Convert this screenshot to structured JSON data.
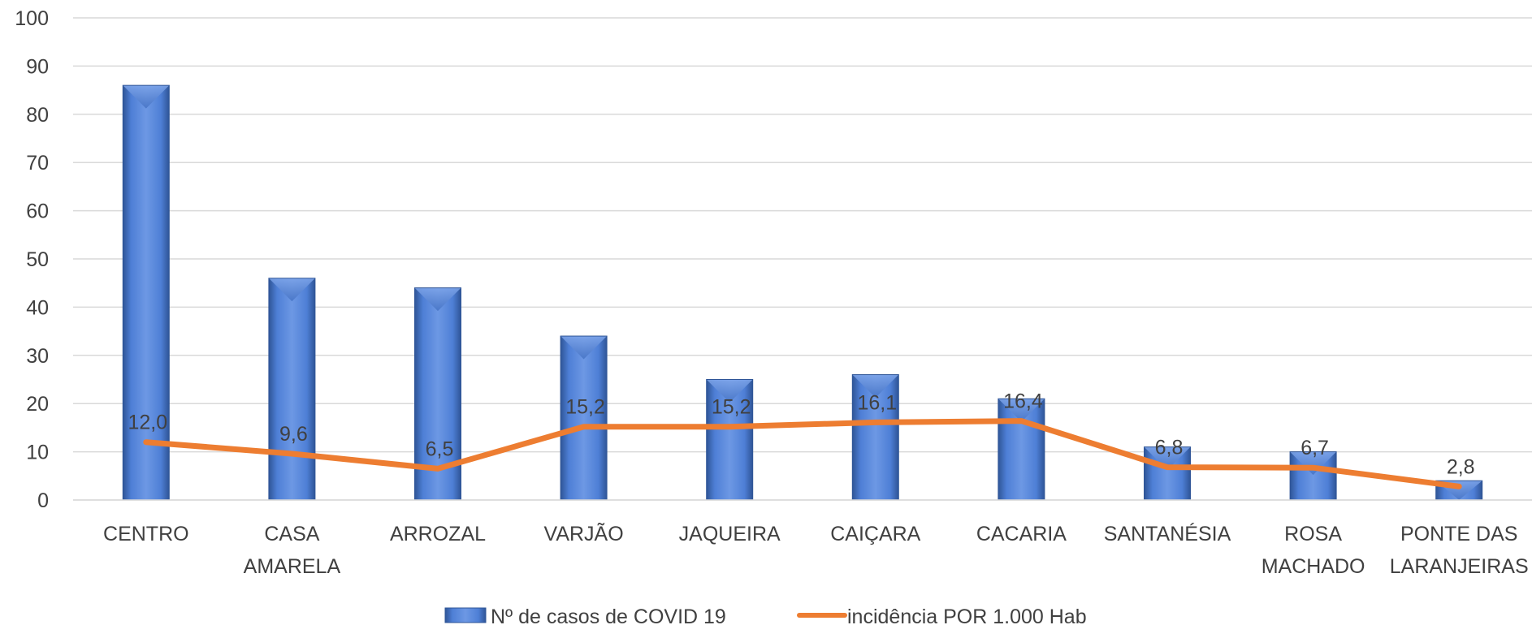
{
  "chart_data": {
    "type": "bar",
    "categories": [
      [
        "CENTRO"
      ],
      [
        "CASA",
        "AMARELA"
      ],
      [
        "ARROZAL"
      ],
      [
        "VARJÃO"
      ],
      [
        "JAQUEIRA"
      ],
      [
        "CAIÇARA"
      ],
      [
        "CACARIA"
      ],
      [
        "SANTANÉSIA"
      ],
      [
        "ROSA",
        "MACHADO"
      ],
      [
        "PONTE DAS",
        "LARANJEIRAS"
      ]
    ],
    "series": [
      {
        "name": "Nº de casos de COVID 19",
        "kind": "bar",
        "color": "#4472C4",
        "values": [
          86,
          46,
          44,
          34,
          25,
          26,
          21,
          11,
          10,
          4
        ]
      },
      {
        "name": "incidência POR 1.000 Hab",
        "kind": "line",
        "color": "#ED7D31",
        "values": [
          12.0,
          9.6,
          6.5,
          15.2,
          15.2,
          16.1,
          16.4,
          6.8,
          6.7,
          2.8
        ],
        "labels": [
          "12,0",
          "9,6",
          "6,5",
          "15,2",
          "15,2",
          "16,1",
          "16,4",
          "6,8",
          "6,7",
          "2,8"
        ]
      }
    ],
    "ylim": [
      0,
      100
    ],
    "yticks": [
      "0",
      "10",
      "20",
      "30",
      "40",
      "50",
      "60",
      "70",
      "80",
      "90",
      "100"
    ],
    "grid": true,
    "legend_position": "bottom"
  }
}
